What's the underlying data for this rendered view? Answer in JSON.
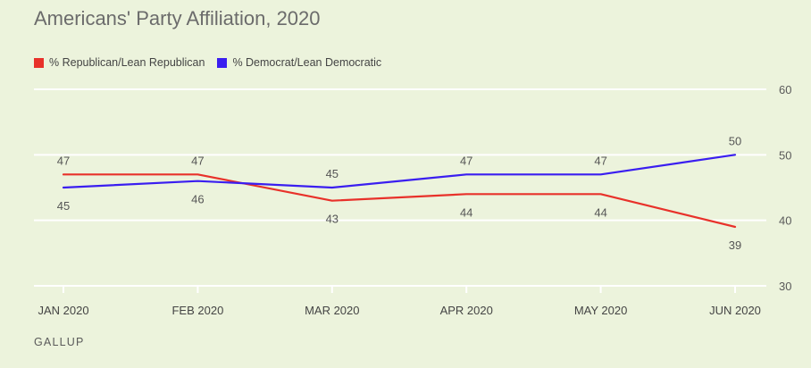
{
  "chart_data": {
    "type": "line",
    "title": "Americans' Party Affiliation, 2020",
    "categories": [
      "JAN 2020",
      "FEB 2020",
      "MAR 2020",
      "APR 2020",
      "MAY 2020",
      "JUN 2020"
    ],
    "series": [
      {
        "name": "% Republican/Lean Republican",
        "color": "#e8312a",
        "values": [
          47,
          47,
          43,
          44,
          44,
          39
        ]
      },
      {
        "name": "% Democrat/Lean Democratic",
        "color": "#3a1ef0",
        "values": [
          45,
          46,
          45,
          47,
          47,
          50
        ]
      }
    ],
    "ylim": [
      30,
      60
    ],
    "yticks": [
      30,
      40,
      50,
      60
    ],
    "grid": true,
    "legend_position": "top-left",
    "source": "GALLUP"
  }
}
